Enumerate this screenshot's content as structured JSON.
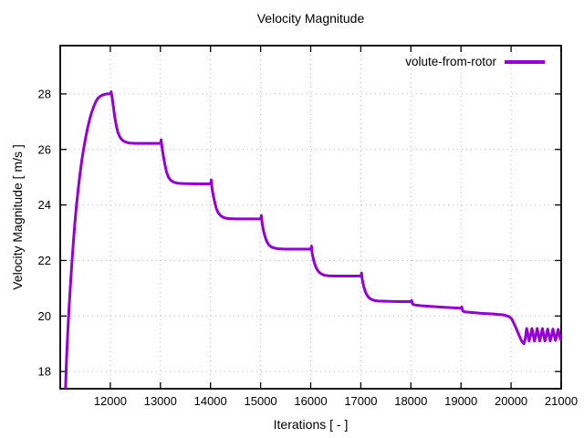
{
  "window": {
    "title": "Velocity Magnitude"
  },
  "chart_data": {
    "type": "line",
    "title": "Velocity Magnitude",
    "xlabel": "Iterations [ - ]",
    "ylabel": "Velocity Magnitude [ m/s ]",
    "xlim": [
      11000,
      21000
    ],
    "ylim": [
      17.38,
      29.74
    ],
    "x_ticks": [
      12000,
      13000,
      14000,
      15000,
      16000,
      17000,
      18000,
      19000,
      20000,
      21000
    ],
    "y_ticks": [
      18,
      20,
      22,
      24,
      26,
      28
    ],
    "grid": true,
    "legend_position": "top-right",
    "colors": {
      "axis": "#000000",
      "grid": "#bbbbbb",
      "background": "#ffffff"
    },
    "series": [
      {
        "name": "volute-from-rotor",
        "color": "#9400d3",
        "points": [
          [
            11105,
            17.3
          ],
          [
            11125,
            18.4
          ],
          [
            11150,
            19.4
          ],
          [
            11175,
            20.25
          ],
          [
            11200,
            21.0
          ],
          [
            11230,
            21.85
          ],
          [
            11260,
            22.6
          ],
          [
            11290,
            23.3
          ],
          [
            11320,
            23.9
          ],
          [
            11355,
            24.5
          ],
          [
            11390,
            25.05
          ],
          [
            11430,
            25.6
          ],
          [
            11470,
            26.05
          ],
          [
            11510,
            26.45
          ],
          [
            11550,
            26.8
          ],
          [
            11590,
            27.1
          ],
          [
            11630,
            27.35
          ],
          [
            11670,
            27.55
          ],
          [
            11710,
            27.72
          ],
          [
            11750,
            27.84
          ],
          [
            11800,
            27.92
          ],
          [
            11860,
            27.97
          ],
          [
            11930,
            28.0
          ],
          [
            12010,
            28.0
          ],
          [
            12015,
            28.08
          ],
          [
            12030,
            27.95
          ],
          [
            12060,
            27.55
          ],
          [
            12090,
            27.15
          ],
          [
            12120,
            26.85
          ],
          [
            12150,
            26.62
          ],
          [
            12190,
            26.45
          ],
          [
            12240,
            26.33
          ],
          [
            12300,
            26.27
          ],
          [
            12380,
            26.23
          ],
          [
            12500,
            26.22
          ],
          [
            12750,
            26.22
          ],
          [
            13005,
            26.22
          ],
          [
            13015,
            26.35
          ],
          [
            13030,
            26.1
          ],
          [
            13060,
            25.75
          ],
          [
            13090,
            25.45
          ],
          [
            13120,
            25.2
          ],
          [
            13160,
            25.0
          ],
          [
            13210,
            24.88
          ],
          [
            13270,
            24.82
          ],
          [
            13350,
            24.78
          ],
          [
            13500,
            24.77
          ],
          [
            13750,
            24.76
          ],
          [
            14005,
            24.76
          ],
          [
            14015,
            24.9
          ],
          [
            14030,
            24.6
          ],
          [
            14060,
            24.3
          ],
          [
            14090,
            24.05
          ],
          [
            14120,
            23.85
          ],
          [
            14160,
            23.7
          ],
          [
            14210,
            23.6
          ],
          [
            14270,
            23.54
          ],
          [
            14350,
            23.51
          ],
          [
            14500,
            23.5
          ],
          [
            14750,
            23.5
          ],
          [
            15005,
            23.5
          ],
          [
            15015,
            23.62
          ],
          [
            15030,
            23.35
          ],
          [
            15060,
            23.05
          ],
          [
            15090,
            22.85
          ],
          [
            15120,
            22.7
          ],
          [
            15160,
            22.57
          ],
          [
            15210,
            22.49
          ],
          [
            15270,
            22.45
          ],
          [
            15350,
            22.42
          ],
          [
            15500,
            22.41
          ],
          [
            15750,
            22.41
          ],
          [
            16005,
            22.41
          ],
          [
            16015,
            22.52
          ],
          [
            16030,
            22.25
          ],
          [
            16060,
            22.0
          ],
          [
            16090,
            21.82
          ],
          [
            16120,
            21.7
          ],
          [
            16160,
            21.59
          ],
          [
            16210,
            21.52
          ],
          [
            16270,
            21.47
          ],
          [
            16350,
            21.45
          ],
          [
            16500,
            21.44
          ],
          [
            16750,
            21.44
          ],
          [
            17005,
            21.44
          ],
          [
            17015,
            21.55
          ],
          [
            17030,
            21.3
          ],
          [
            17060,
            21.05
          ],
          [
            17090,
            20.88
          ],
          [
            17120,
            20.76
          ],
          [
            17160,
            20.66
          ],
          [
            17210,
            20.6
          ],
          [
            17270,
            20.56
          ],
          [
            17350,
            20.54
          ],
          [
            17500,
            20.53
          ],
          [
            17750,
            20.52
          ],
          [
            18000,
            20.52
          ],
          [
            18015,
            20.56
          ],
          [
            18030,
            20.44
          ],
          [
            18070,
            20.4
          ],
          [
            18200,
            20.37
          ],
          [
            18450,
            20.34
          ],
          [
            18700,
            20.31
          ],
          [
            19000,
            20.28
          ],
          [
            19015,
            20.33
          ],
          [
            19035,
            20.18
          ],
          [
            19080,
            20.15
          ],
          [
            19250,
            20.12
          ],
          [
            19450,
            20.09
          ],
          [
            19650,
            20.07
          ],
          [
            19850,
            20.04
          ],
          [
            19960,
            19.98
          ],
          [
            20010,
            19.9
          ],
          [
            20060,
            19.72
          ],
          [
            20110,
            19.52
          ],
          [
            20160,
            19.3
          ],
          [
            20210,
            19.1
          ],
          [
            20255,
            19.0
          ],
          [
            20285,
            19.2
          ],
          [
            20310,
            19.55
          ],
          [
            20335,
            19.35
          ],
          [
            20360,
            19.1
          ],
          [
            20390,
            19.3
          ],
          [
            20415,
            19.55
          ],
          [
            20440,
            19.35
          ],
          [
            20465,
            19.1
          ],
          [
            20495,
            19.3
          ],
          [
            20520,
            19.55
          ],
          [
            20545,
            19.33
          ],
          [
            20570,
            19.1
          ],
          [
            20600,
            19.32
          ],
          [
            20625,
            19.55
          ],
          [
            20650,
            19.33
          ],
          [
            20675,
            19.1
          ],
          [
            20705,
            19.3
          ],
          [
            20730,
            19.53
          ],
          [
            20755,
            19.32
          ],
          [
            20780,
            19.1
          ],
          [
            20810,
            19.3
          ],
          [
            20835,
            19.53
          ],
          [
            20860,
            19.32
          ],
          [
            20885,
            19.12
          ],
          [
            20915,
            19.32
          ],
          [
            20940,
            19.52
          ],
          [
            20965,
            19.3
          ],
          [
            20990,
            19.15
          ],
          [
            21000,
            19.3
          ]
        ]
      }
    ]
  }
}
